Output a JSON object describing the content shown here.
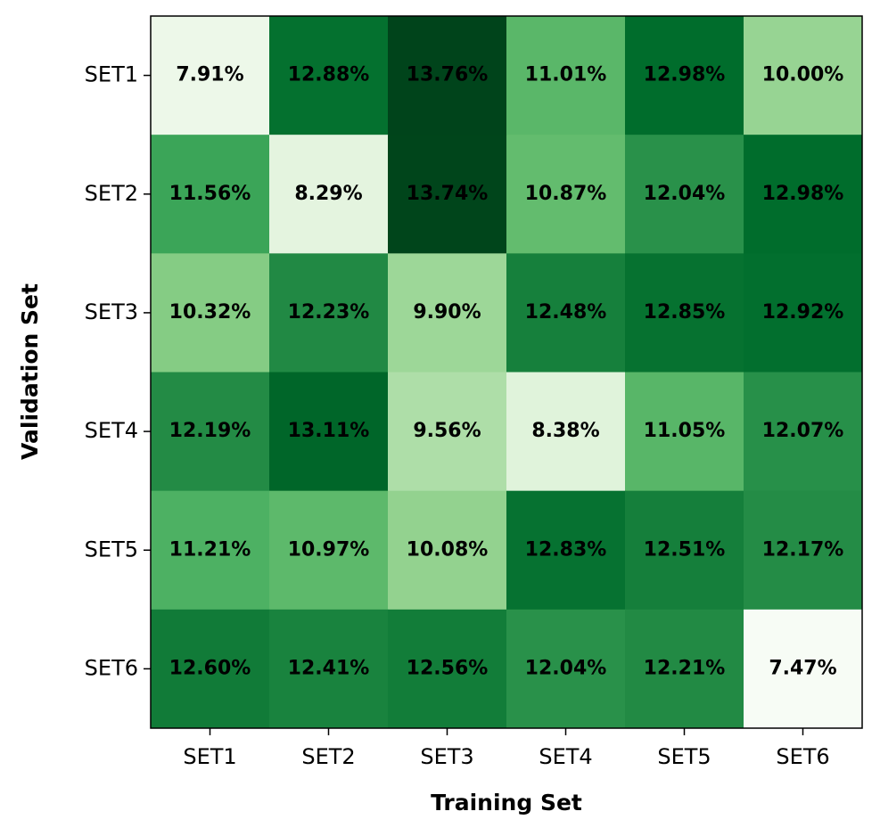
{
  "chart_data": {
    "type": "heatmap",
    "x_label": "Training Set",
    "y_label": "Validation Set",
    "x_categories": [
      "SET1",
      "SET2",
      "SET3",
      "SET4",
      "SET5",
      "SET6"
    ],
    "y_categories": [
      "SET1",
      "SET2",
      "SET3",
      "SET4",
      "SET5",
      "SET6"
    ],
    "values": [
      [
        7.91,
        12.88,
        13.76,
        11.01,
        12.98,
        10.0
      ],
      [
        11.56,
        8.29,
        13.74,
        10.87,
        12.04,
        12.98
      ],
      [
        10.32,
        12.23,
        9.9,
        12.48,
        12.85,
        12.92
      ],
      [
        12.19,
        13.11,
        9.56,
        8.38,
        11.05,
        12.07
      ],
      [
        11.21,
        10.97,
        10.08,
        12.83,
        12.51,
        12.17
      ],
      [
        12.6,
        12.41,
        12.56,
        12.04,
        12.21,
        7.47
      ]
    ],
    "value_labels": [
      [
        "7.91%",
        "12.88%",
        "13.76%",
        "11.01%",
        "12.98%",
        "10.00%"
      ],
      [
        "11.56%",
        "8.29%",
        "13.74%",
        "10.87%",
        "12.04%",
        "12.98%"
      ],
      [
        "10.32%",
        "12.23%",
        "9.90%",
        "12.48%",
        "12.85%",
        "12.92%"
      ],
      [
        "12.19%",
        "13.11%",
        "9.56%",
        "8.38%",
        "11.05%",
        "12.07%"
      ],
      [
        "11.21%",
        "10.97%",
        "10.08%",
        "12.83%",
        "12.51%",
        "12.17%"
      ],
      [
        "12.60%",
        "12.41%",
        "12.56%",
        "12.04%",
        "12.21%",
        "7.47%"
      ]
    ],
    "colormap": "Greens"
  }
}
